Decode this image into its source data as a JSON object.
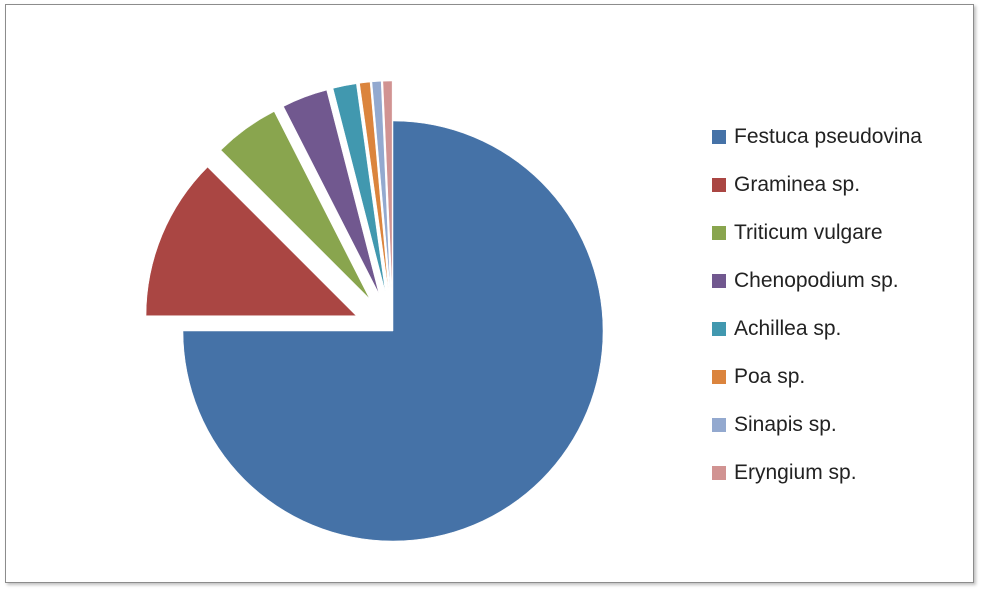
{
  "chart_data": {
    "type": "pie",
    "title": "",
    "legend_position": "right",
    "exploded": true,
    "slices": [
      {
        "label": "Festuca pseudovina",
        "value": 75.0,
        "color": "#4572A7"
      },
      {
        "label": "Graminea sp.",
        "value": 12.5,
        "color": "#AA4643"
      },
      {
        "label": "Triticum vulgare",
        "value": 5.0,
        "color": "#89A54E"
      },
      {
        "label": "Chenopodium sp.",
        "value": 3.5,
        "color": "#71588F"
      },
      {
        "label": "Achillea sp.",
        "value": 1.8,
        "color": "#4198AF"
      },
      {
        "label": "Poa sp.",
        "value": 0.8,
        "color": "#DB843D"
      },
      {
        "label": "Sinapis sp.",
        "value": 0.7,
        "color": "#93A9CF"
      },
      {
        "label": "Eryngium sp.",
        "value": 0.7,
        "color": "#D19392"
      }
    ]
  }
}
